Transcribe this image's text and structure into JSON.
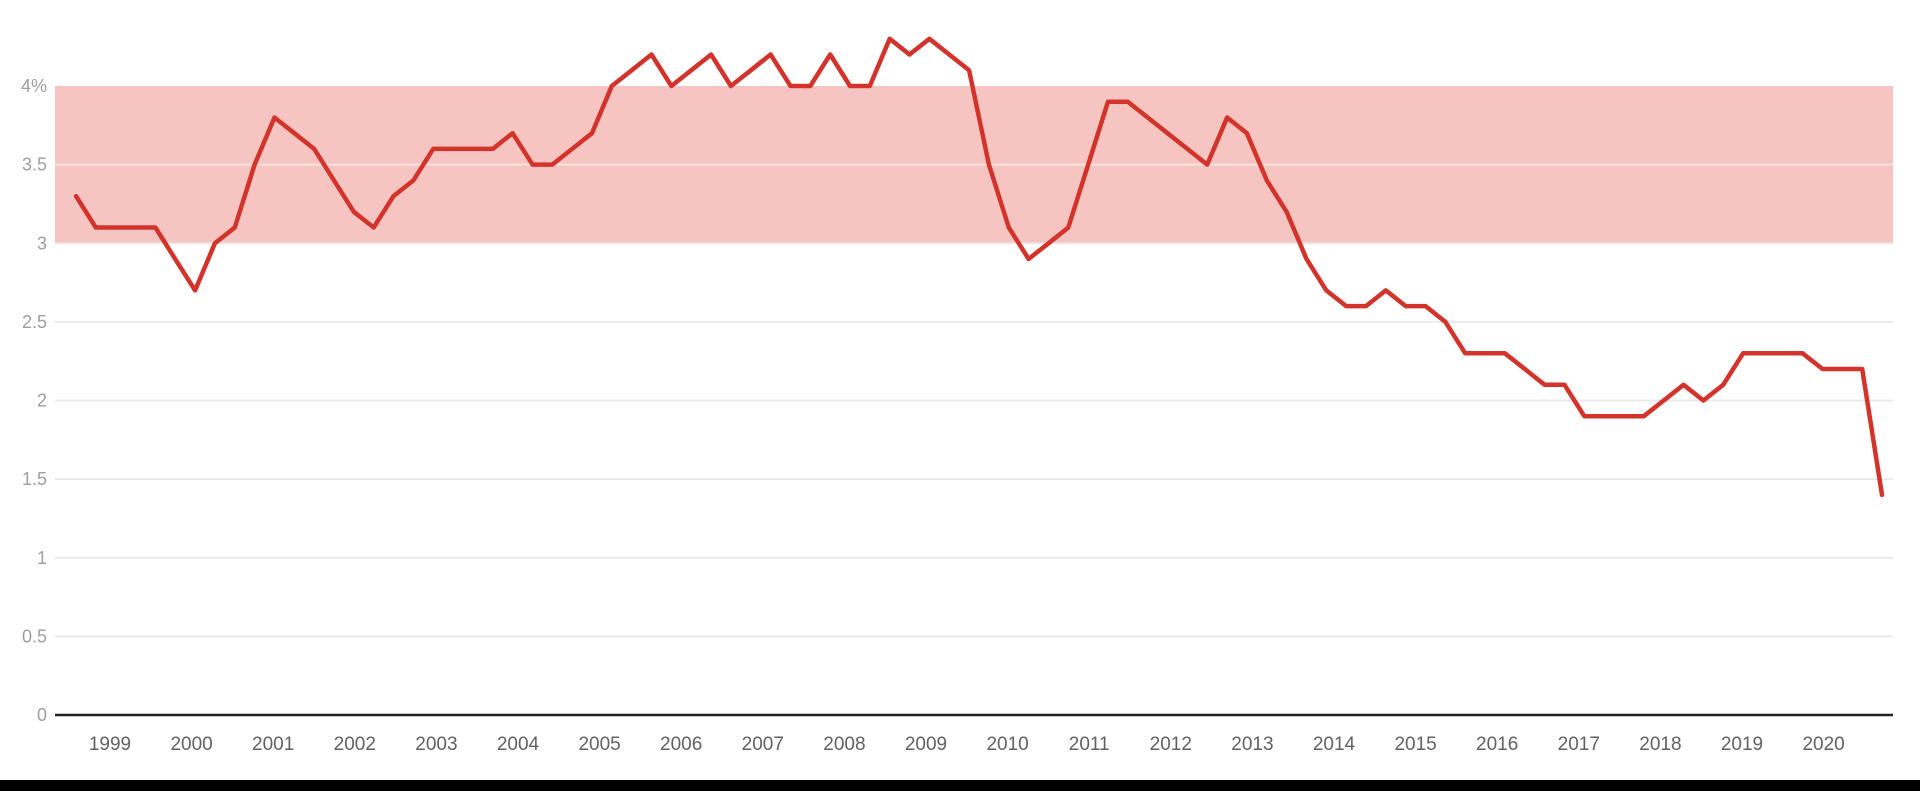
{
  "page": {
    "background": "#ffffff",
    "bottom_bar_color": "#000000"
  },
  "chart_data": {
    "type": "line",
    "title": "",
    "xlabel": "",
    "ylabel": "",
    "x_tick_years": [
      "1999",
      "2000",
      "2001",
      "2002",
      "2003",
      "2004",
      "2005",
      "2006",
      "2007",
      "2008",
      "2009",
      "2010",
      "2011",
      "2012",
      "2013",
      "2014",
      "2015",
      "2016",
      "2017",
      "2018",
      "2019",
      "2020"
    ],
    "x_cadence": "approximately quarterly",
    "x_range": [
      1998.6,
      2020.7
    ],
    "ylim": [
      0,
      4.45
    ],
    "grid": true,
    "legend_position": "none",
    "yticks": [
      {
        "value": 4,
        "label": "4%"
      },
      {
        "value": 3.5,
        "label": "3.5"
      },
      {
        "value": 3,
        "label": "3"
      },
      {
        "value": 2.5,
        "label": "2.5"
      },
      {
        "value": 2,
        "label": "2"
      },
      {
        "value": 1.5,
        "label": "1.5"
      },
      {
        "value": 1,
        "label": "1"
      },
      {
        "value": 0.5,
        "label": "0.5"
      },
      {
        "value": 0,
        "label": "0"
      }
    ],
    "band": {
      "from": 3,
      "to": 4,
      "color": "#f6c5c2"
    },
    "gridline_color": "#e8e8e8",
    "band_gridline_color": "rgba(255,255,255,0.55)",
    "axis_color": "#212121",
    "ytick_color": "#9e9e9e",
    "xtick_color": "#616161",
    "series": [
      {
        "name": "rate-percent",
        "color": "#d2342c",
        "values": [
          3.3,
          3.1,
          3.1,
          3.1,
          3.1,
          2.9,
          2.7,
          3.0,
          3.1,
          3.5,
          3.8,
          3.7,
          3.6,
          3.4,
          3.2,
          3.1,
          3.3,
          3.4,
          3.6,
          3.6,
          3.6,
          3.6,
          3.7,
          3.5,
          3.5,
          3.6,
          3.7,
          4.0,
          4.1,
          4.2,
          4.0,
          4.1,
          4.2,
          4.0,
          4.1,
          4.2,
          4.0,
          4.0,
          4.2,
          4.0,
          4.0,
          4.3,
          4.2,
          4.3,
          4.2,
          4.1,
          3.5,
          3.1,
          2.9,
          3.0,
          3.1,
          3.5,
          3.9,
          3.9,
          3.8,
          3.7,
          3.6,
          3.5,
          3.8,
          3.7,
          3.4,
          3.2,
          2.9,
          2.7,
          2.6,
          2.6,
          2.7,
          2.6,
          2.6,
          2.5,
          2.3,
          2.3,
          2.3,
          2.2,
          2.1,
          2.1,
          1.9,
          1.9,
          1.9,
          1.9,
          2.0,
          2.1,
          2.0,
          2.1,
          2.3,
          2.3,
          2.3,
          2.3,
          2.2,
          2.2,
          2.2,
          1.4
        ]
      }
    ]
  }
}
